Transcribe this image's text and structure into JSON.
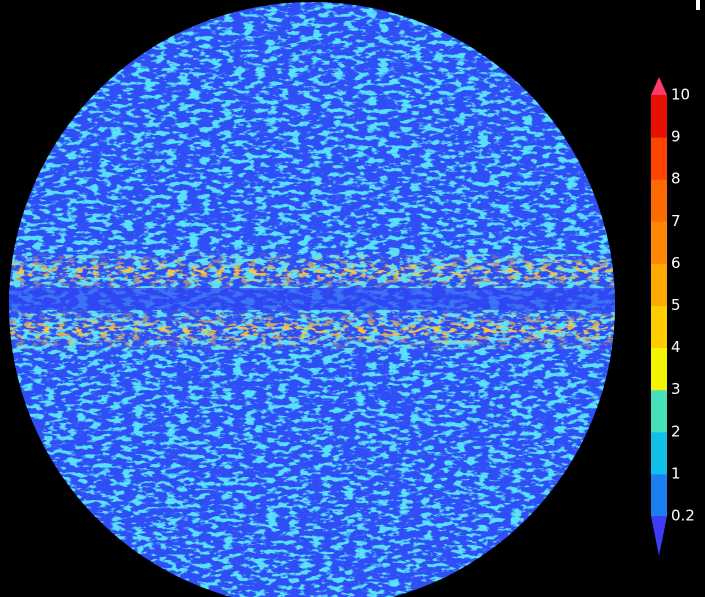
{
  "colorbar": {
    "ticks": [
      0.2,
      1,
      2,
      3,
      4,
      5,
      6,
      7,
      8,
      9,
      10
    ],
    "under_color": "#3f3cf5",
    "colors": [
      "#1c7ff0",
      "#10c0e8",
      "#48e0b8",
      "#f4f400",
      "#ffcc00",
      "#ffa800",
      "#ff8800",
      "#ff6a00",
      "#ff4400",
      "#e81000"
    ],
    "over_color": "#ff3a6a"
  }
}
